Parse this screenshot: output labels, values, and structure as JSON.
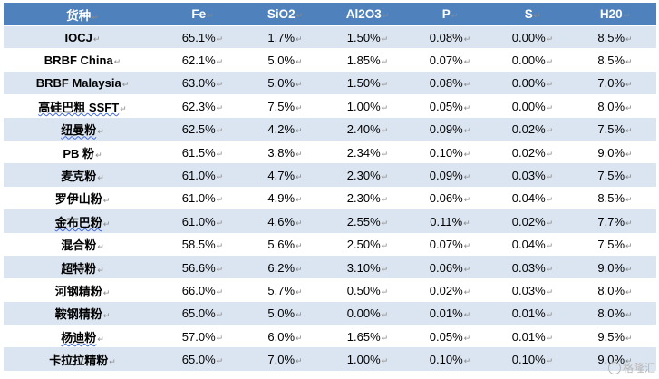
{
  "headers": [
    "货种",
    "Fe",
    "SiO2",
    "Al2O3",
    "P",
    "S",
    "H20"
  ],
  "paragraph_mark": "↵",
  "rows": [
    [
      "IOCJ",
      "65.1%",
      "1.7%",
      "1.50%",
      "0.08%",
      "0.00%",
      "8.5%"
    ],
    [
      "BRBF China",
      "62.1%",
      "5.0%",
      "1.85%",
      "0.07%",
      "0.00%",
      "8.5%"
    ],
    [
      "BRBF Malaysia",
      "63.0%",
      "5.0%",
      "1.50%",
      "0.08%",
      "0.00%",
      "7.0%"
    ],
    [
      "高硅巴粗 SSFT",
      "62.3%",
      "7.5%",
      "1.00%",
      "0.05%",
      "0.00%",
      "8.0%"
    ],
    [
      "纽曼粉",
      "62.5%",
      "4.2%",
      "2.40%",
      "0.09%",
      "0.02%",
      "7.5%"
    ],
    [
      "PB 粉",
      "61.5%",
      "3.8%",
      "2.34%",
      "0.10%",
      "0.02%",
      "9.0%"
    ],
    [
      "麦克粉",
      "61.0%",
      "4.7%",
      "2.30%",
      "0.09%",
      "0.03%",
      "7.5%"
    ],
    [
      "罗伊山粉",
      "61.0%",
      "4.9%",
      "2.30%",
      "0.06%",
      "0.04%",
      "8.5%"
    ],
    [
      "金布巴粉",
      "61.0%",
      "4.6%",
      "2.55%",
      "0.11%",
      "0.02%",
      "7.7%"
    ],
    [
      "混合粉",
      "58.5%",
      "5.6%",
      "2.50%",
      "0.07%",
      "0.04%",
      "7.5%"
    ],
    [
      "超特粉",
      "56.6%",
      "6.2%",
      "3.10%",
      "0.06%",
      "0.03%",
      "9.0%"
    ],
    [
      "河钢精粉",
      "66.0%",
      "5.7%",
      "0.50%",
      "0.02%",
      "0.03%",
      "8.0%"
    ],
    [
      "鞍钢精粉",
      "65.0%",
      "5.0%",
      "0.00%",
      "0.01%",
      "0.01%",
      "8.0%"
    ],
    [
      "杨迪粉",
      "57.0%",
      "6.0%",
      "1.65%",
      "0.05%",
      "0.01%",
      "9.5%"
    ],
    [
      "卡拉拉精粉",
      "65.0%",
      "7.0%",
      "1.00%",
      "0.10%",
      "0.10%",
      "9.0%"
    ]
  ],
  "wavy_rows": [
    3,
    4,
    8,
    13
  ],
  "watermark": "格隆汇",
  "colors": {
    "header_bg": "#4f81bd",
    "band_bg": "#dbe5f1",
    "header_text": "#ffffff"
  }
}
